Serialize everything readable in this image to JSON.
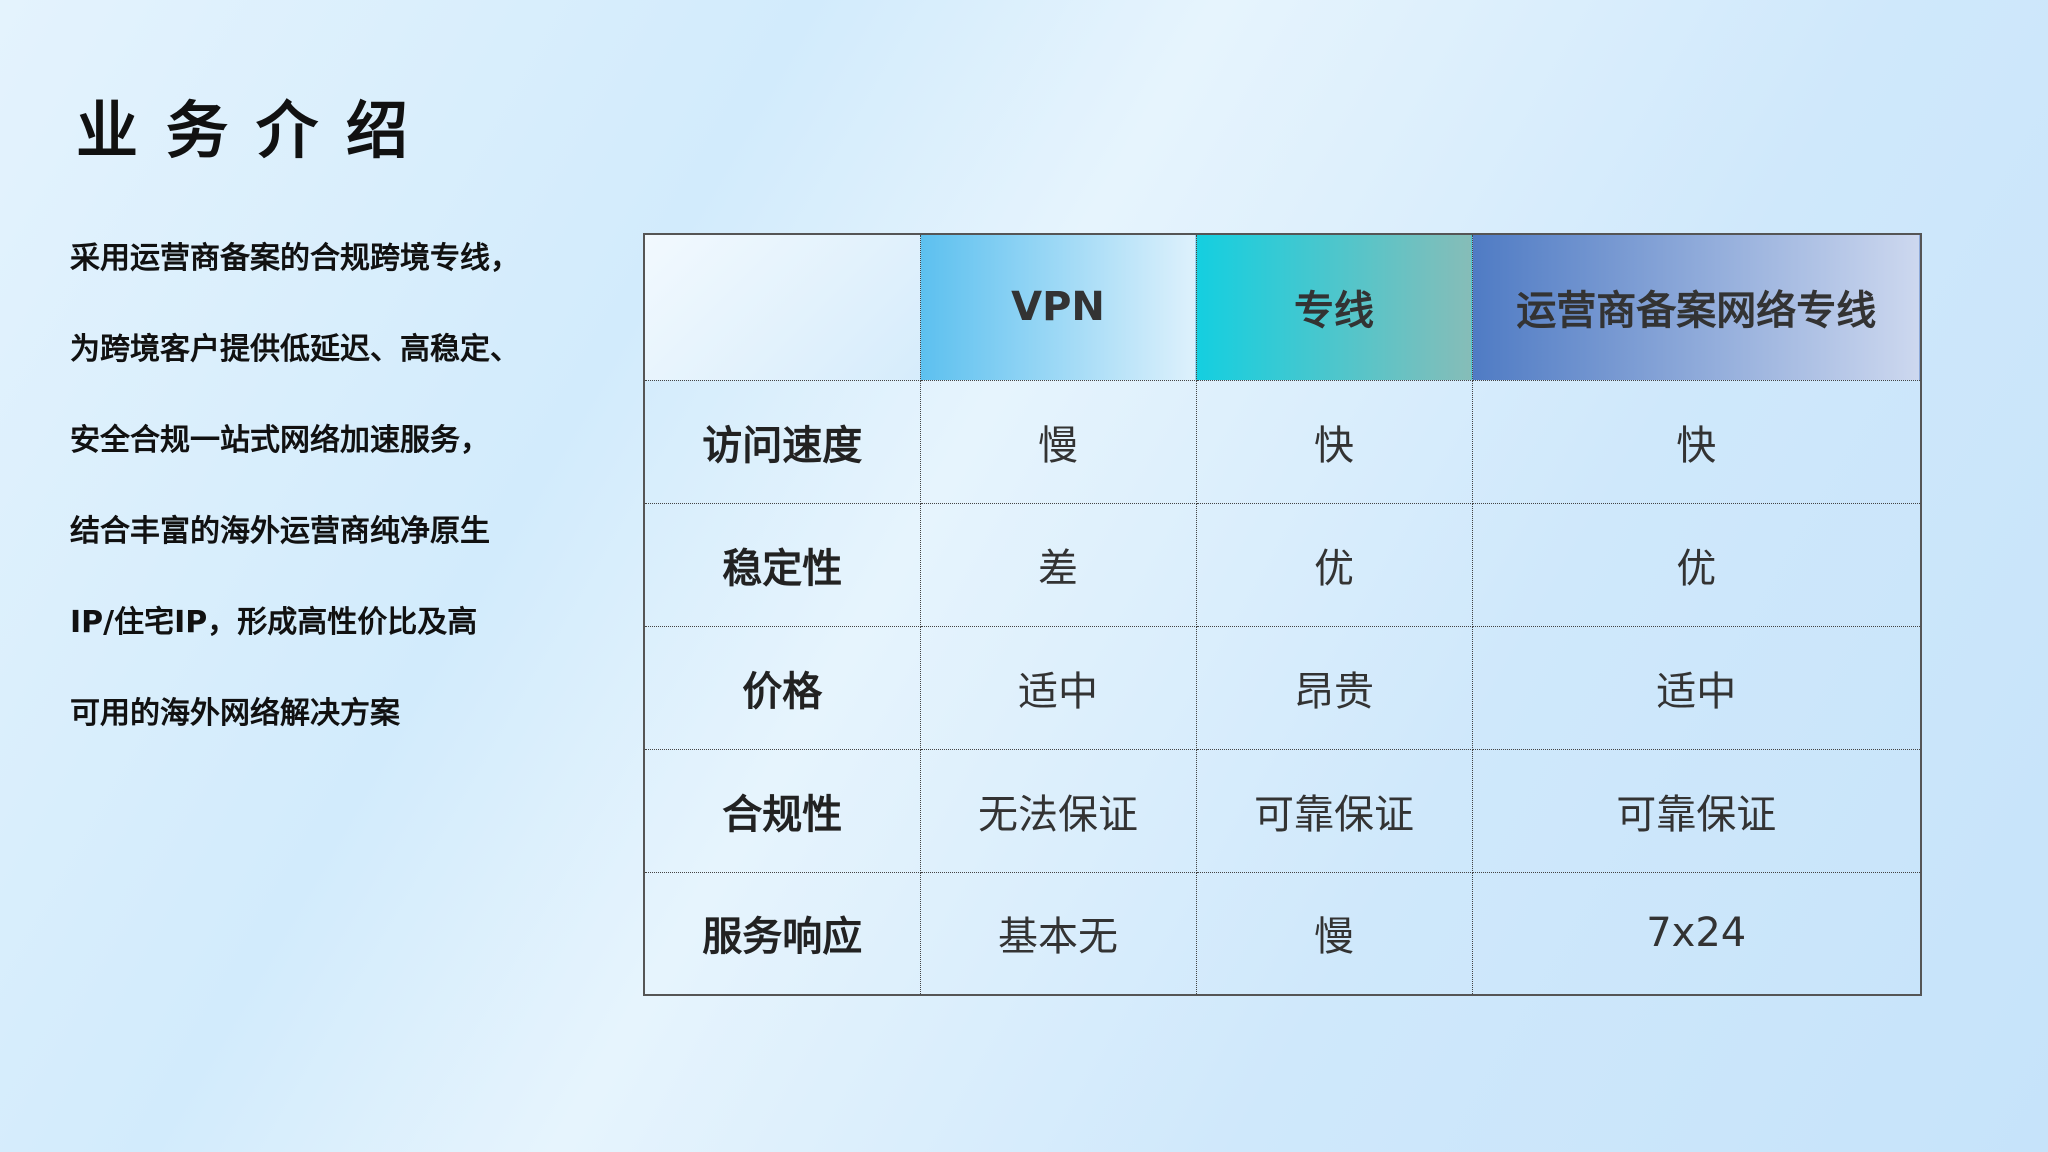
{
  "title": "业务介绍",
  "description": [
    "采用运营商备案的合规跨境专线，",
    "为跨境客户提供低延迟、高稳定、",
    "安全合规一站式网络加速服务，",
    "结合丰富的海外运营商纯净原生",
    "IP/住宅IP，形成高性价比及高",
    "可用的海外网络解决方案"
  ],
  "table": {
    "headers": [
      "",
      "VPN",
      "专线",
      "运营商备案网络专线"
    ],
    "header_colors": [
      "#5cc0ef",
      "#14cfe0",
      "#4f7bc4"
    ],
    "rows": [
      [
        "访问速度",
        "慢",
        "快",
        "快"
      ],
      [
        "稳定性",
        "差",
        "优",
        "优"
      ],
      [
        "价格",
        "适中",
        "昂贵",
        "适中"
      ],
      [
        "合规性",
        "无法保证",
        "可靠保证",
        "可靠保证"
      ],
      [
        "服务响应",
        "基本无",
        "慢",
        "7x24"
      ]
    ]
  }
}
